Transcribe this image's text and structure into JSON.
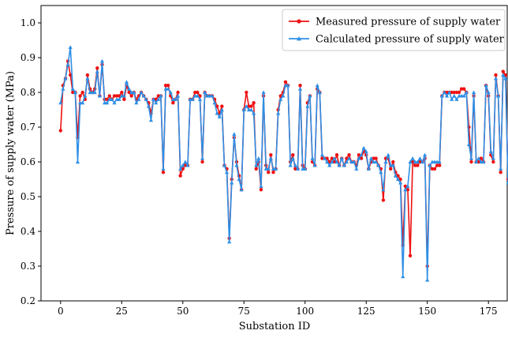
{
  "chart_data": {
    "type": "line",
    "title": "",
    "xlabel": "Substation ID",
    "ylabel": "Pressure of supply water (MPa)",
    "xlim": [
      -8,
      183
    ],
    "ylim": [
      0.2,
      1.05
    ],
    "xticks": [
      0,
      25,
      50,
      75,
      100,
      125,
      150,
      175
    ],
    "yticks": [
      0.2,
      0.3,
      0.4,
      0.5,
      0.6,
      0.7,
      0.8,
      0.9,
      1.0
    ],
    "xtick_labels": [
      "0",
      "25",
      "50",
      "75",
      "100",
      "125",
      "150",
      "175"
    ],
    "ytick_labels": [
      "0.2",
      "0.3",
      "0.4",
      "0.5",
      "0.6",
      "0.7",
      "0.8",
      "0.9",
      "1.0"
    ],
    "grid": false,
    "legend_position": "top-right",
    "series": [
      {
        "name": "Measured pressure of supply water",
        "color": "#ee1111",
        "marker": "circle",
        "values": [
          0.69,
          0.82,
          0.84,
          0.89,
          0.85,
          0.8,
          0.8,
          0.67,
          0.79,
          0.8,
          0.78,
          0.85,
          0.81,
          0.8,
          0.81,
          0.87,
          0.79,
          0.88,
          0.78,
          0.78,
          0.79,
          0.78,
          0.79,
          0.79,
          0.79,
          0.8,
          0.78,
          0.82,
          0.8,
          0.79,
          0.8,
          0.78,
          0.79,
          0.8,
          0.79,
          0.78,
          0.77,
          0.74,
          0.78,
          0.78,
          0.79,
          0.79,
          0.57,
          0.82,
          0.82,
          0.79,
          0.77,
          0.78,
          0.8,
          0.56,
          0.58,
          0.59,
          0.59,
          0.78,
          0.78,
          0.8,
          0.8,
          0.79,
          0.6,
          0.8,
          0.79,
          0.79,
          0.79,
          0.78,
          0.76,
          0.74,
          0.76,
          0.59,
          0.58,
          0.38,
          0.55,
          0.67,
          0.6,
          0.56,
          0.52,
          0.75,
          0.8,
          0.76,
          0.76,
          0.77,
          0.58,
          0.6,
          0.52,
          0.79,
          0.59,
          0.57,
          0.62,
          0.57,
          0.58,
          0.75,
          0.79,
          0.8,
          0.83,
          0.82,
          0.6,
          0.62,
          0.58,
          0.58,
          0.82,
          0.59,
          0.58,
          0.77,
          0.79,
          0.6,
          0.59,
          0.81,
          0.8,
          0.61,
          0.61,
          0.61,
          0.6,
          0.61,
          0.6,
          0.62,
          0.59,
          0.61,
          0.59,
          0.61,
          0.62,
          0.6,
          0.6,
          0.59,
          0.62,
          0.61,
          0.63,
          0.62,
          0.58,
          0.6,
          0.61,
          0.61,
          0.59,
          0.58,
          0.49,
          0.61,
          0.61,
          0.58,
          0.6,
          0.57,
          0.56,
          0.55,
          0.36,
          0.53,
          0.52,
          0.33,
          0.6,
          0.59,
          0.59,
          0.6,
          0.6,
          0.61,
          0.3,
          0.59,
          0.58,
          0.58,
          0.59,
          0.59,
          0.79,
          0.8,
          0.8,
          0.8,
          0.8,
          0.8,
          0.8,
          0.8,
          0.81,
          0.81,
          0.8,
          0.7,
          0.6,
          0.79,
          0.6,
          0.6,
          0.61,
          0.6,
          0.82,
          0.79,
          0.62,
          0.6,
          0.85,
          0.79,
          0.57,
          0.86,
          0.85,
          0.55
        ]
      },
      {
        "name": "Calculated pressure of supply water",
        "color": "#2e8fe6",
        "marker": "triangle",
        "values": [
          0.77,
          0.81,
          0.84,
          0.88,
          0.93,
          0.81,
          0.8,
          0.6,
          0.77,
          0.77,
          0.79,
          0.84,
          0.8,
          0.8,
          0.8,
          0.86,
          0.79,
          0.89,
          0.77,
          0.77,
          0.78,
          0.78,
          0.77,
          0.78,
          0.78,
          0.79,
          0.79,
          0.83,
          0.81,
          0.8,
          0.8,
          0.77,
          0.78,
          0.8,
          0.79,
          0.78,
          0.76,
          0.72,
          0.78,
          0.77,
          0.78,
          0.79,
          0.58,
          0.81,
          0.81,
          0.8,
          0.78,
          0.78,
          0.79,
          0.58,
          0.59,
          0.6,
          0.59,
          0.78,
          0.78,
          0.79,
          0.79,
          0.78,
          0.61,
          0.8,
          0.79,
          0.79,
          0.79,
          0.77,
          0.74,
          0.73,
          0.75,
          0.59,
          0.57,
          0.37,
          0.54,
          0.68,
          0.59,
          0.55,
          0.52,
          0.75,
          0.76,
          0.75,
          0.75,
          0.74,
          0.59,
          0.61,
          0.53,
          0.8,
          0.58,
          0.58,
          0.61,
          0.58,
          0.58,
          0.74,
          0.78,
          0.79,
          0.82,
          0.82,
          0.59,
          0.61,
          0.59,
          0.58,
          0.81,
          0.58,
          0.58,
          0.76,
          0.79,
          0.61,
          0.59,
          0.82,
          0.8,
          0.62,
          0.61,
          0.6,
          0.59,
          0.6,
          0.61,
          0.6,
          0.59,
          0.61,
          0.59,
          0.6,
          0.61,
          0.6,
          0.6,
          0.58,
          0.61,
          0.62,
          0.64,
          0.63,
          0.58,
          0.61,
          0.6,
          0.6,
          0.59,
          0.57,
          0.52,
          0.6,
          0.62,
          0.59,
          0.59,
          0.56,
          0.55,
          0.54,
          0.27,
          0.52,
          0.53,
          0.6,
          0.61,
          0.6,
          0.6,
          0.61,
          0.6,
          0.62,
          0.26,
          0.59,
          0.6,
          0.6,
          0.6,
          0.6,
          0.79,
          0.8,
          0.79,
          0.8,
          0.78,
          0.79,
          0.78,
          0.79,
          0.79,
          0.79,
          0.8,
          0.65,
          0.61,
          0.8,
          0.6,
          0.61,
          0.6,
          0.6,
          0.82,
          0.8,
          0.63,
          0.61,
          0.84,
          0.79,
          0.58,
          0.85,
          0.84,
          0.54
        ]
      }
    ]
  }
}
